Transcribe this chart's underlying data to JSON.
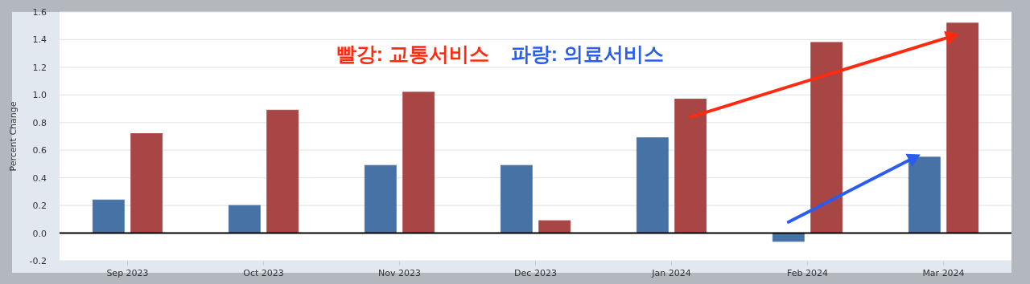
{
  "chart_data": {
    "type": "bar",
    "ylabel": "Percent Change",
    "categories": [
      "Sep 2023",
      "Oct 2023",
      "Nov 2023",
      "Dec 2023",
      "Jan 2024",
      "Feb 2024",
      "Mar 2024"
    ],
    "series": [
      {
        "color": "#4672a5",
        "values": [
          0.24,
          0.2,
          0.49,
          0.49,
          0.69,
          -0.06,
          0.55
        ]
      },
      {
        "color": "#a84545",
        "values": [
          0.72,
          0.89,
          1.02,
          0.09,
          0.97,
          1.38,
          1.52
        ]
      }
    ],
    "ylim": [
      -0.2,
      1.6
    ],
    "yticks": [
      -0.2,
      {
        "value": 0,
        "label": "0.0"
      },
      0.2,
      0.4,
      0.6,
      0.8,
      {
        "value": 1,
        "label": "1.0"
      },
      1.2,
      1.4,
      1.6
    ],
    "grid": "y",
    "annotations": [
      "빨강: 교통서비스",
      "파랑: 의료서비스"
    ]
  }
}
